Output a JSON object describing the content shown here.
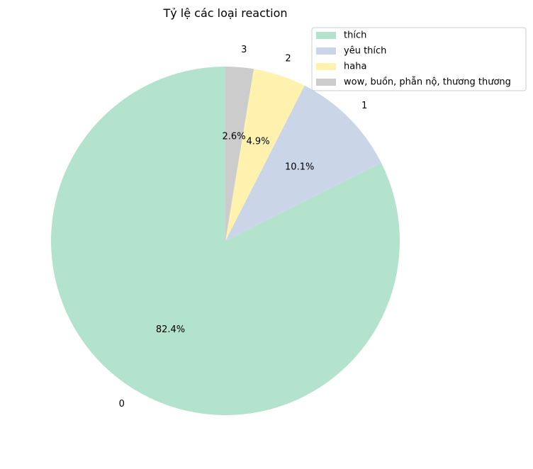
{
  "chart_data": {
    "type": "pie",
    "title": "Tỷ lệ các loại reaction",
    "slices": [
      {
        "legend": "thích",
        "label": "0",
        "value": 82.4,
        "pct_label": "82.4%",
        "color": "#b3e2cd"
      },
      {
        "legend": "yêu thích",
        "label": "1",
        "value": 10.1,
        "pct_label": "10.1%",
        "color": "#cbd5e8"
      },
      {
        "legend": "haha",
        "label": "2",
        "value": 4.9,
        "pct_label": "4.9%",
        "color": "#fff2ae"
      },
      {
        "legend": "wow, buồn, phẫn nộ, thương thương",
        "label": "3",
        "value": 2.6,
        "pct_label": "2.6%",
        "color": "#cccccc"
      }
    ],
    "start_angle": 90,
    "direction": "counterclockwise",
    "legend_position": "top-right"
  }
}
